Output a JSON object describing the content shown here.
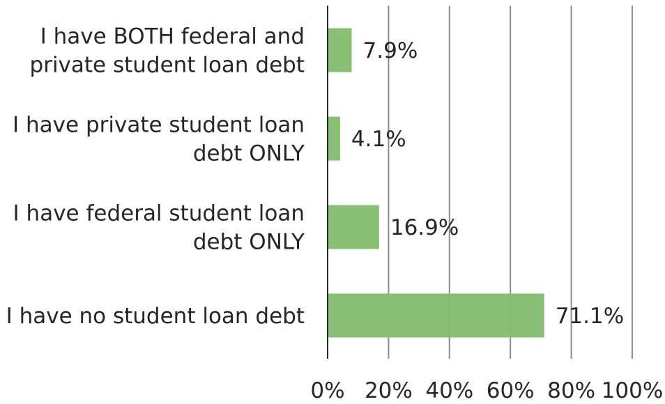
{
  "chart_data": {
    "type": "bar",
    "orientation": "horizontal",
    "categories": [
      [
        "I have BOTH federal and",
        "private student loan debt"
      ],
      [
        "I have private student loan",
        "debt ONLY"
      ],
      [
        "I have federal student loan",
        "debt ONLY"
      ],
      [
        "I have no student loan debt"
      ]
    ],
    "values": [
      7.9,
      4.1,
      16.9,
      71.1
    ],
    "data_labels": [
      "7.9%",
      "4.1%",
      "16.9%",
      "71.1%"
    ],
    "xlim": [
      0,
      100
    ],
    "x_ticks": [
      0,
      20,
      40,
      60,
      80,
      100
    ],
    "x_tick_labels": [
      "0%",
      "20%",
      "40%",
      "60%",
      "80%",
      "100%"
    ],
    "grid": true,
    "colors": {
      "bar": "#82bd6e"
    }
  }
}
